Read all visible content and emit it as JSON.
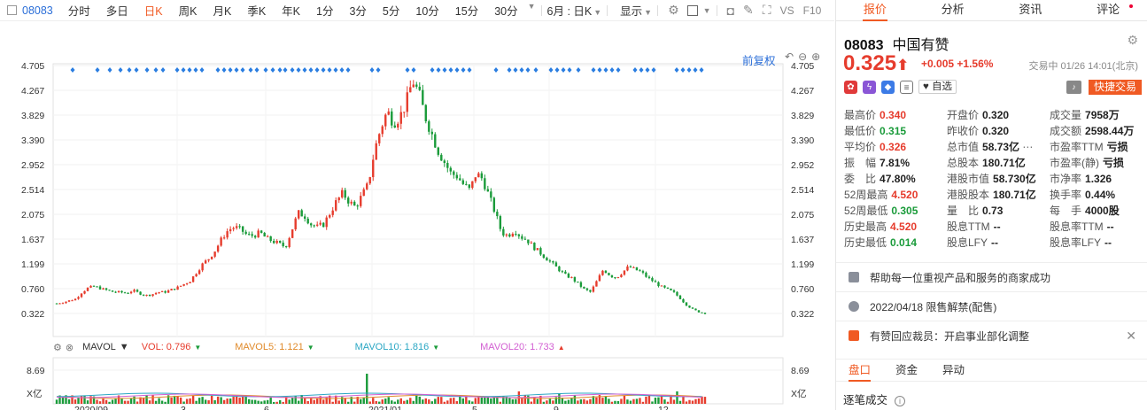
{
  "toolbar": {
    "code": "08083",
    "tabs": [
      "分时",
      "多日",
      "日K",
      "周K",
      "月K",
      "季K",
      "年K",
      "1分",
      "3分",
      "5分",
      "10分",
      "15分",
      "30分"
    ],
    "active_tab": "日K",
    "period_select": "6月 : 日K",
    "display_label": "显示",
    "vs_label": "VS",
    "f10_label": "F10"
  },
  "chart": {
    "adjust_label": "前复权",
    "y_ticks": [
      "4.705",
      "4.267",
      "3.829",
      "3.390",
      "2.952",
      "2.514",
      "2.075",
      "1.637",
      "1.199",
      "0.760",
      "0.322"
    ],
    "vol_ticks": [
      "8.69",
      "X亿"
    ],
    "x_ticks": [
      "2020/09",
      "3",
      "6",
      "2021/01",
      "5",
      "9",
      "12"
    ],
    "vol_title": "MAVOL",
    "vol_value": "VOL: 0.796",
    "mavol5": "MAVOL5: 1.121",
    "mavol10": "MAVOL10: 1.816",
    "mavol20": "MAVOL20: 1.733",
    "colors": {
      "up": "#e63c2d",
      "down": "#1a9b3a",
      "mavol5": "#e08a2a",
      "mavol10": "#2ba7c4",
      "mavol20": "#d25fd2",
      "marker": "#2a7de1"
    }
  },
  "chart_data": {
    "type": "candlestick",
    "xlabel": "",
    "ylabel": "",
    "ylim": [
      0.322,
      4.705
    ],
    "close_path": [
      0.5,
      0.52,
      0.55,
      0.58,
      0.7,
      0.78,
      0.8,
      0.76,
      0.73,
      0.7,
      0.7,
      0.68,
      0.73,
      0.68,
      0.64,
      0.66,
      0.7,
      0.7,
      0.74,
      0.78,
      0.84,
      0.9,
      1.05,
      1.2,
      1.3,
      1.45,
      1.65,
      1.8,
      1.85,
      1.8,
      1.7,
      1.7,
      1.75,
      1.65,
      1.6,
      1.55,
      1.5,
      1.8,
      2.1,
      2.05,
      1.9,
      1.85,
      1.9,
      2.1,
      2.3,
      2.45,
      2.3,
      2.2,
      2.4,
      2.6,
      3.2,
      3.6,
      3.9,
      3.7,
      3.8,
      4.05,
      4.45,
      4.2,
      3.8,
      3.5,
      3.2,
      3.0,
      2.8,
      2.75,
      2.6,
      2.5,
      2.8,
      2.7,
      2.4,
      2.1,
      1.75,
      1.7,
      1.8,
      1.68,
      1.62,
      1.5,
      1.4,
      1.3,
      1.2,
      1.1,
      1.0,
      0.95,
      0.85,
      0.75,
      0.7,
      0.9,
      1.1,
      1.0,
      0.95,
      1.05,
      1.15,
      1.1,
      1.05,
      0.95,
      0.88,
      0.8,
      0.75,
      0.7,
      0.6,
      0.48,
      0.4,
      0.35,
      0.325
    ]
  },
  "panel": {
    "tabs": [
      "报价",
      "分析",
      "资讯",
      "评论"
    ],
    "code": "08083",
    "name": "中国有赞",
    "price": "0.325",
    "arrow": "⬆",
    "change": "+0.005",
    "change_pct": "+1.56%",
    "time": "交易中 01/26 14:01(北京)",
    "fav_label": "自选",
    "trade_label": "快捷交易",
    "stats": [
      [
        "最高价",
        "0.340",
        "red"
      ],
      [
        "开盘价",
        "0.320",
        ""
      ],
      [
        "成交量",
        "7958万",
        ""
      ],
      [
        "最低价",
        "0.315",
        "green"
      ],
      [
        "昨收价",
        "0.320",
        ""
      ],
      [
        "成交额",
        "2598.44万",
        ""
      ],
      [
        "平均价",
        "0.326",
        "red"
      ],
      [
        "总市值",
        "58.73亿",
        ""
      ],
      [
        "市盈率TTM",
        "亏损",
        ""
      ],
      [
        "振　幅",
        "7.81%",
        ""
      ],
      [
        "总股本",
        "180.71亿",
        ""
      ],
      [
        "市盈率(静)",
        "亏损",
        ""
      ],
      [
        "委　比",
        "47.80%",
        ""
      ],
      [
        "港股市值",
        "58.730亿",
        ""
      ],
      [
        "市净率",
        "1.326",
        ""
      ],
      [
        "52周最高",
        "4.520",
        "red"
      ],
      [
        "港股股本",
        "180.71亿",
        ""
      ],
      [
        "换手率",
        "0.44%",
        ""
      ],
      [
        "52周最低",
        "0.305",
        "green"
      ],
      [
        "量　比",
        "0.73",
        ""
      ],
      [
        "每　手",
        "4000股",
        ""
      ],
      [
        "历史最高",
        "4.520",
        "red"
      ],
      [
        "股息TTM",
        "--",
        ""
      ],
      [
        "股息率TTM",
        "--",
        ""
      ],
      [
        "历史最低",
        "0.014",
        "green"
      ],
      [
        "股息LFY",
        "--",
        ""
      ],
      [
        "股息率LFY",
        "--",
        ""
      ]
    ],
    "notices": [
      {
        "text": "帮助每一位重视产品和服务的商家成功",
        "icon": "book-icon"
      },
      {
        "text": "2022/04/18  限售解禁(配售)",
        "icon": "info-icon"
      },
      {
        "text": "有赞回应裁员：开启事业部化调整",
        "icon": "news-icon"
      }
    ],
    "bottom_tabs": [
      "盘口",
      "资金",
      "异动"
    ],
    "tick_label": "逐笔成交"
  }
}
